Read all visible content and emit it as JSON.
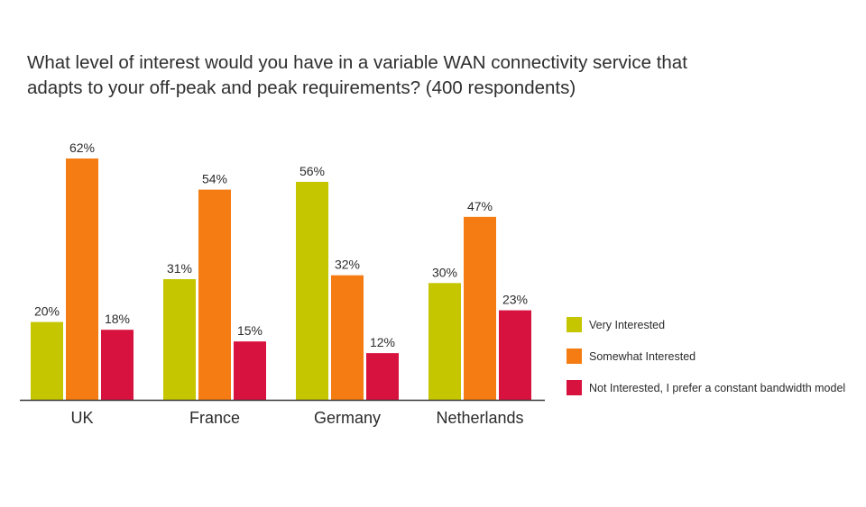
{
  "title": {
    "line1": "What level of interest would you have in a variable WAN connectivity service that",
    "line2": "adapts to your off-peak and peak requirements?  (400 respondents)"
  },
  "colors": {
    "very_interested": "#c5c600",
    "somewhat_interested": "#f47c12",
    "not_interested": "#d8123e",
    "axis": "#3a3a3a"
  },
  "chart_data": {
    "type": "bar",
    "title": "What level of interest would you have in a variable WAN connectivity service that adapts to your off-peak and peak requirements?  (400 respondents)",
    "categories": [
      "UK",
      "France",
      "Germany",
      "Netherlands"
    ],
    "series": [
      {
        "name": "Very Interested",
        "color": "#c5c600",
        "values": [
          20,
          31,
          56,
          30
        ]
      },
      {
        "name": "Somewhat Interested",
        "color": "#f47c12",
        "values": [
          62,
          54,
          32,
          47
        ]
      },
      {
        "name": "Not Interested, I prefer a constant bandwidth model",
        "color": "#d8123e",
        "values": [
          18,
          15,
          12,
          23
        ]
      }
    ],
    "value_suffix": "%",
    "ylim": [
      0,
      62
    ],
    "xlabel": "",
    "ylabel": "",
    "grid": false,
    "legend_position": "right"
  }
}
